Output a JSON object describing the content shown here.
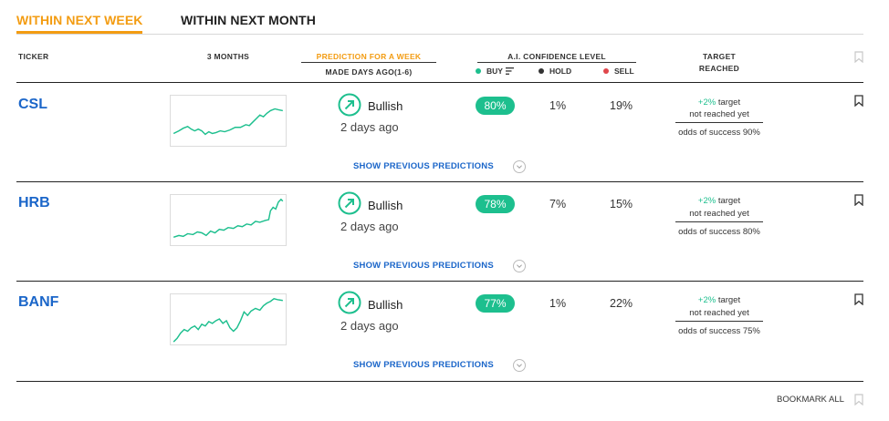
{
  "tabs": [
    {
      "label": "WITHIN NEXT WEEK",
      "active": true
    },
    {
      "label": "WITHIN NEXT MONTH",
      "active": false
    }
  ],
  "headers": {
    "ticker": "TICKER",
    "months": "3 MONTHS",
    "prediction": "PREDICTION FOR A WEEK",
    "made_days": "MADE DAYS AGO(1-6)",
    "confidence": "A.I. CONFIDENCE LEVEL",
    "buy": "BUY",
    "hold": "HOLD",
    "sell": "SELL",
    "target_line1": "TARGET",
    "target_line2": "REACHED"
  },
  "colors": {
    "accent": "#f39c12",
    "link": "#1b66c9",
    "buy": "#1dbf8e",
    "hold": "#333333",
    "sell": "#e0474c"
  },
  "rows": [
    {
      "ticker": "CSL",
      "prediction": "Bullish",
      "days_ago": "2 days ago",
      "buy": "80%",
      "hold": "1%",
      "sell": "19%",
      "target_pct": "+2%",
      "target_word": "target",
      "not_reached": "not reached yet",
      "odds": "odds of success 90%",
      "show_prev": "SHOW PREVIOUS PREDICTIONS"
    },
    {
      "ticker": "HRB",
      "prediction": "Bullish",
      "days_ago": "2 days ago",
      "buy": "78%",
      "hold": "7%",
      "sell": "15%",
      "target_pct": "+2%",
      "target_word": "target",
      "not_reached": "not reached yet",
      "odds": "odds of success 80%",
      "show_prev": "SHOW PREVIOUS PREDICTIONS"
    },
    {
      "ticker": "BANF",
      "prediction": "Bullish",
      "days_ago": "2 days ago",
      "buy": "77%",
      "hold": "1%",
      "sell": "22%",
      "target_pct": "+2%",
      "target_word": "target",
      "not_reached": "not reached yet",
      "odds": "odds of success 75%",
      "show_prev": "SHOW PREVIOUS PREDICTIONS"
    }
  ],
  "bookmark_all": "BOOKMARK ALL"
}
